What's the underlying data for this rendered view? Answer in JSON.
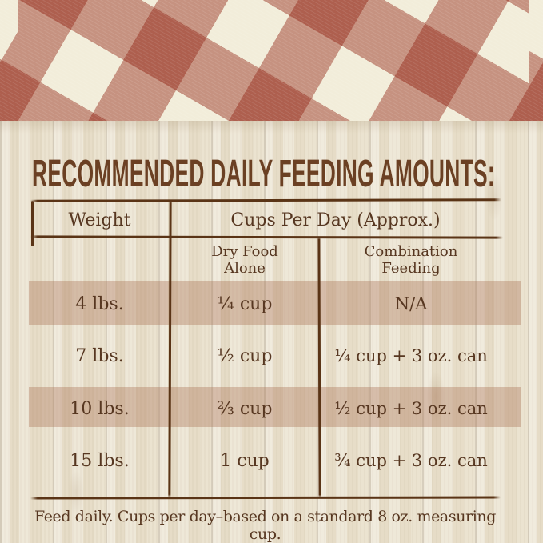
{
  "title": "RECOMMENDED DAILY FEEDING AMOUNTS:",
  "table": {
    "header": {
      "weight": "Weight",
      "cups_per_day": "Cups Per Day (Approx.)"
    },
    "subheaders": {
      "dry_food": [
        "Dry Food",
        "Alone"
      ],
      "combination": [
        "Combination",
        "Feeding"
      ]
    },
    "rows": [
      {
        "weight": "4 lbs.",
        "dry_food_alone": "¼ cup",
        "combination_feeding": "N/A",
        "highlighted": true
      },
      {
        "weight": "7 lbs.",
        "dry_food_alone": "½ cup",
        "combination_feeding": "¼ cup + 3 oz. can",
        "highlighted": false
      },
      {
        "weight": "10 lbs.",
        "dry_food_alone": "⅔ cup",
        "combination_feeding": "½ cup + 3 oz. can",
        "highlighted": true
      },
      {
        "weight": "15 lbs.",
        "dry_food_alone": "1 cup",
        "combination_feeding": "¾ cup + 3 oz. can",
        "highlighted": false
      }
    ]
  },
  "footnote": "Feed daily. Cups per day–based on a standard 8 oz. measuring cup.",
  "colors": {
    "gingham_cream": "#f2edda",
    "gingham_rose": "#c69180",
    "gingham_brown": "#ad6644",
    "wood_background": "#ebe3d0",
    "text_ink": "#573721",
    "rule_ink": "#5a3416",
    "title_ink": "#6b4023",
    "highlight_band": "rgba(170,115,88,0.38)"
  }
}
